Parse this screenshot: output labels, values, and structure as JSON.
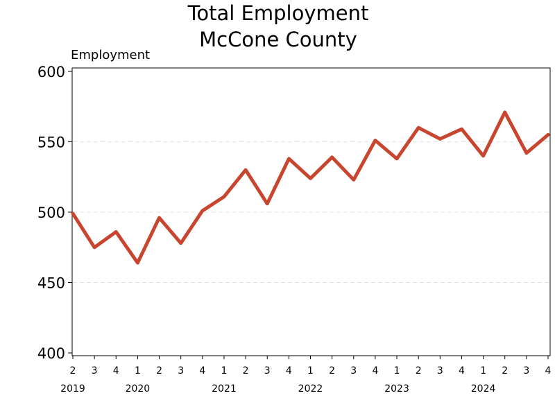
{
  "chart_data": {
    "type": "line",
    "title_line1": "Total Employment",
    "title_line2": "McCone County",
    "ylabel": "Employment",
    "xlabel": "",
    "ylim": [
      400,
      600
    ],
    "yticks": [
      "400",
      "450",
      "500",
      "550",
      "600"
    ],
    "grid": "horizontal dashed",
    "color": "#c8452f",
    "quarters": [
      "2",
      "3",
      "4",
      "1",
      "2",
      "3",
      "4",
      "1",
      "2",
      "3",
      "4",
      "1",
      "2",
      "3",
      "4",
      "1",
      "2",
      "3",
      "4",
      "1",
      "2",
      "3",
      "4"
    ],
    "years": [
      "2019",
      "2020",
      "2021",
      "2022",
      "2023",
      "2024"
    ],
    "series": [
      {
        "values": [
          499,
          475,
          486,
          464,
          496,
          478,
          501,
          511,
          530,
          506,
          538,
          524,
          539,
          523,
          551,
          538,
          560,
          552,
          559,
          540,
          571,
          542,
          555
        ]
      }
    ]
  }
}
